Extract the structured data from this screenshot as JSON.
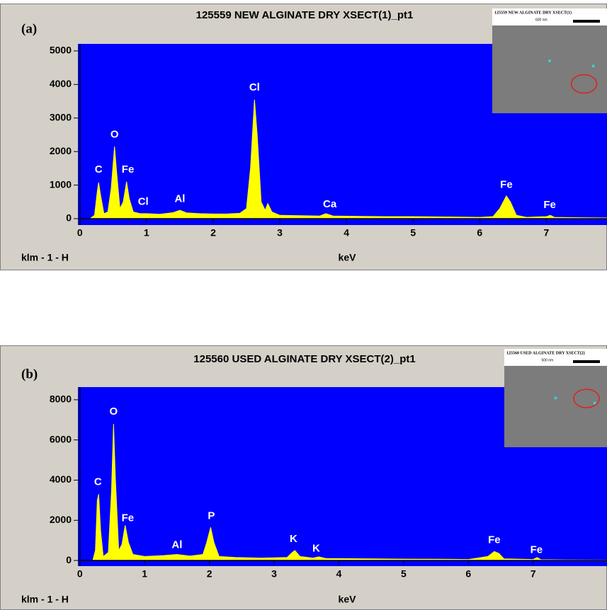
{
  "chart_data": [
    {
      "type": "area",
      "panel_label": "(a)",
      "title": "125559 NEW  ALGINATE DRY XSECT(1)_pt1",
      "xlabel": "keV",
      "footer": "klm - 1 - H",
      "inset_title": "125559 NEW  ALGINATE DRY XSECT(1)",
      "inset_scale": "600 nm",
      "color": "#ffff00",
      "background": "#0000ff",
      "xlim": [
        -0.03,
        7.91
      ],
      "ylim": [
        -190,
        5210
      ],
      "xticks": [
        0,
        1,
        2,
        3,
        4,
        5,
        6,
        7
      ],
      "yticks": [
        0,
        1000,
        2000,
        3000,
        4000,
        5000
      ],
      "x": [
        0,
        0.15,
        0.22,
        0.26,
        0.28,
        0.31,
        0.36,
        0.42,
        0.47,
        0.52,
        0.55,
        0.6,
        0.65,
        0.7,
        0.74,
        0.8,
        0.9,
        1.0,
        1.2,
        1.4,
        1.5,
        1.6,
        1.8,
        2.0,
        2.2,
        2.4,
        2.5,
        2.56,
        2.62,
        2.66,
        2.72,
        2.78,
        2.82,
        2.88,
        3.0,
        3.3,
        3.6,
        3.69,
        3.8,
        4.2,
        4.6,
        5.0,
        5.5,
        6.0,
        6.2,
        6.3,
        6.4,
        6.46,
        6.55,
        6.7,
        7.0,
        7.06,
        7.12,
        7.5,
        7.91
      ],
      "values": [
        0,
        0,
        100,
        800,
        1080,
        700,
        150,
        200,
        900,
        2150,
        1400,
        300,
        500,
        1100,
        600,
        200,
        150,
        150,
        130,
        180,
        250,
        170,
        150,
        140,
        140,
        160,
        300,
        1500,
        3550,
        2500,
        500,
        250,
        450,
        200,
        100,
        90,
        80,
        150,
        80,
        70,
        60,
        60,
        50,
        40,
        60,
        300,
        680,
        500,
        100,
        40,
        60,
        100,
        40,
        30,
        20
      ],
      "annotations": [
        {
          "text": "C",
          "x": 0.28,
          "y": 1450
        },
        {
          "text": "O",
          "x": 0.52,
          "y": 2500
        },
        {
          "text": "Fe",
          "x": 0.72,
          "y": 1450
        },
        {
          "text": "Cl",
          "x": 0.95,
          "y": 500
        },
        {
          "text": "Al",
          "x": 1.5,
          "y": 580
        },
        {
          "text": "Cl",
          "x": 2.62,
          "y": 3900
        },
        {
          "text": "Ca",
          "x": 3.75,
          "y": 420
        },
        {
          "text": "Fe",
          "x": 6.4,
          "y": 1000
        },
        {
          "text": "Fe",
          "x": 7.05,
          "y": 400
        }
      ]
    },
    {
      "type": "area",
      "panel_label": "(b)",
      "title": "125560 USED ALGINATE DRY XSECT(2)_pt1",
      "xlabel": "keV",
      "footer": "klm - 1 - H",
      "inset_title": "125560 USED ALGINATE DRY XSECT(2)",
      "inset_scale": "500 nm",
      "color": "#ffff00",
      "background": "#0000ff",
      "xlim": [
        -0.03,
        8.14
      ],
      "ylim": [
        -280,
        8630
      ],
      "xticks": [
        0,
        1,
        2,
        3,
        4,
        5,
        6,
        7
      ],
      "yticks": [
        0,
        2000,
        4000,
        6000,
        8000
      ],
      "x": [
        0,
        0.2,
        0.24,
        0.27,
        0.29,
        0.32,
        0.36,
        0.44,
        0.49,
        0.52,
        0.55,
        0.6,
        0.65,
        0.7,
        0.75,
        0.82,
        1.0,
        1.3,
        1.5,
        1.7,
        1.9,
        1.96,
        2.02,
        2.07,
        2.15,
        2.4,
        2.8,
        3.2,
        3.28,
        3.32,
        3.4,
        3.6,
        3.69,
        3.8,
        4.5,
        5.0,
        5.5,
        6.0,
        6.3,
        6.4,
        6.47,
        6.55,
        7.0,
        7.06,
        7.12,
        7.5,
        8.14
      ],
      "values": [
        0,
        0,
        500,
        3000,
        3300,
        1500,
        200,
        400,
        3500,
        6800,
        4000,
        500,
        800,
        1750,
        900,
        300,
        200,
        250,
        300,
        220,
        300,
        900,
        1650,
        900,
        200,
        150,
        120,
        150,
        400,
        500,
        200,
        120,
        180,
        100,
        80,
        70,
        60,
        50,
        200,
        450,
        350,
        80,
        50,
        150,
        40,
        30,
        20
      ],
      "annotations": [
        {
          "text": "C",
          "x": 0.28,
          "y": 3900
        },
        {
          "text": "O",
          "x": 0.52,
          "y": 7400
        },
        {
          "text": "Fe",
          "x": 0.74,
          "y": 2100
        },
        {
          "text": "Al",
          "x": 1.5,
          "y": 750
        },
        {
          "text": "P",
          "x": 2.03,
          "y": 2200
        },
        {
          "text": "K",
          "x": 3.3,
          "y": 1050
        },
        {
          "text": "K",
          "x": 3.65,
          "y": 580
        },
        {
          "text": "Fe",
          "x": 6.4,
          "y": 1000
        },
        {
          "text": "Fe",
          "x": 7.05,
          "y": 520
        }
      ]
    }
  ]
}
